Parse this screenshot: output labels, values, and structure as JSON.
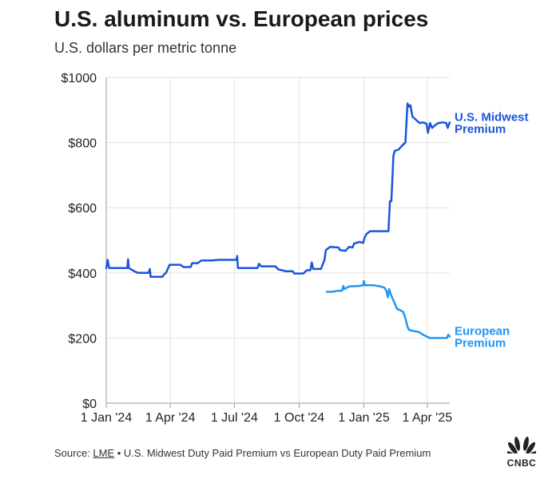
{
  "chart_data": {
    "type": "line",
    "title": "U.S. aluminum vs. European prices",
    "subtitle": "U.S. dollars per metric tonne",
    "xlabel": "",
    "ylabel": "",
    "ylim": [
      0,
      1000
    ],
    "y_ticks": [
      {
        "value": 0,
        "label": "$0"
      },
      {
        "value": 200,
        "label": "$200"
      },
      {
        "value": 400,
        "label": "$400"
      },
      {
        "value": 600,
        "label": "$600"
      },
      {
        "value": 800,
        "label": "$800"
      },
      {
        "value": 1000,
        "label": "$1000"
      }
    ],
    "x_ticks": [
      {
        "day": 0,
        "label": "1 Jan '24"
      },
      {
        "day": 91,
        "label": "1 Apr '24"
      },
      {
        "day": 182,
        "label": "1 Jul '24"
      },
      {
        "day": 274,
        "label": "1 Oct '24"
      },
      {
        "day": 366,
        "label": "1 Jan '25"
      },
      {
        "day": 456,
        "label": "1 Apr '25"
      }
    ],
    "x_domain_days": [
      0,
      488
    ],
    "series": [
      {
        "name": "U.S. Midwest Premium",
        "label_lines": [
          "U.S. Midwest",
          "Premium"
        ],
        "color": "#1a56db",
        "points": [
          [
            0,
            415
          ],
          [
            2,
            440
          ],
          [
            4,
            415
          ],
          [
            30,
            415
          ],
          [
            31,
            442
          ],
          [
            32,
            415
          ],
          [
            40,
            405
          ],
          [
            45,
            400
          ],
          [
            60,
            400
          ],
          [
            62,
            412
          ],
          [
            63,
            388
          ],
          [
            80,
            388
          ],
          [
            82,
            395
          ],
          [
            85,
            400
          ],
          [
            90,
            425
          ],
          [
            105,
            425
          ],
          [
            110,
            418
          ],
          [
            120,
            418
          ],
          [
            122,
            430
          ],
          [
            130,
            430
          ],
          [
            135,
            438
          ],
          [
            150,
            438
          ],
          [
            160,
            440
          ],
          [
            185,
            440
          ],
          [
            186,
            452
          ],
          [
            187,
            415
          ],
          [
            215,
            415
          ],
          [
            217,
            428
          ],
          [
            220,
            420
          ],
          [
            240,
            420
          ],
          [
            245,
            410
          ],
          [
            250,
            408
          ],
          [
            255,
            405
          ],
          [
            265,
            405
          ],
          [
            267,
            398
          ],
          [
            280,
            398
          ],
          [
            285,
            408
          ],
          [
            290,
            408
          ],
          [
            292,
            432
          ],
          [
            294,
            412
          ],
          [
            305,
            412
          ],
          [
            310,
            440
          ],
          [
            312,
            470
          ],
          [
            318,
            480
          ],
          [
            330,
            478
          ],
          [
            332,
            470
          ],
          [
            340,
            468
          ],
          [
            345,
            480
          ],
          [
            350,
            478
          ],
          [
            352,
            490
          ],
          [
            360,
            495
          ],
          [
            365,
            492
          ],
          [
            367,
            508
          ],
          [
            370,
            520
          ],
          [
            375,
            528
          ],
          [
            398,
            528
          ],
          [
            401,
            528
          ],
          [
            403,
            620
          ],
          [
            405,
            620
          ],
          [
            408,
            760
          ],
          [
            410,
            775
          ],
          [
            415,
            778
          ],
          [
            420,
            790
          ],
          [
            425,
            800
          ],
          [
            428,
            920
          ],
          [
            430,
            910
          ],
          [
            432,
            915
          ],
          [
            435,
            880
          ],
          [
            440,
            870
          ],
          [
            445,
            860
          ],
          [
            450,
            862
          ],
          [
            455,
            858
          ],
          [
            457,
            830
          ],
          [
            460,
            860
          ],
          [
            463,
            845
          ],
          [
            468,
            855
          ],
          [
            472,
            860
          ],
          [
            478,
            862
          ],
          [
            483,
            860
          ],
          [
            485,
            845
          ],
          [
            488,
            862
          ]
        ]
      },
      {
        "name": "European Premium",
        "label_lines": [
          "European",
          "Premium"
        ],
        "color": "#2196f3",
        "points": [
          [
            313,
            342
          ],
          [
            320,
            342
          ],
          [
            330,
            345
          ],
          [
            335,
            345
          ],
          [
            337,
            360
          ],
          [
            338,
            350
          ],
          [
            345,
            358
          ],
          [
            360,
            360
          ],
          [
            365,
            362
          ],
          [
            366,
            375
          ],
          [
            367,
            362
          ],
          [
            380,
            362
          ],
          [
            385,
            360
          ],
          [
            390,
            358
          ],
          [
            395,
            355
          ],
          [
            398,
            345
          ],
          [
            400,
            325
          ],
          [
            402,
            350
          ],
          [
            404,
            335
          ],
          [
            407,
            320
          ],
          [
            410,
            305
          ],
          [
            413,
            290
          ],
          [
            418,
            285
          ],
          [
            422,
            280
          ],
          [
            425,
            260
          ],
          [
            428,
            235
          ],
          [
            430,
            225
          ],
          [
            435,
            222
          ],
          [
            440,
            220
          ],
          [
            445,
            218
          ],
          [
            450,
            210
          ],
          [
            455,
            205
          ],
          [
            460,
            200
          ],
          [
            470,
            200
          ],
          [
            484,
            200
          ],
          [
            486,
            210
          ],
          [
            488,
            205
          ]
        ]
      }
    ]
  },
  "footer": {
    "source_prefix": "Source: ",
    "source_link": "LME",
    "source_rest": " • U.S. Midwest Duty Paid Premium vs European Duty Paid Premium"
  },
  "logo": {
    "text": "CNBC"
  }
}
